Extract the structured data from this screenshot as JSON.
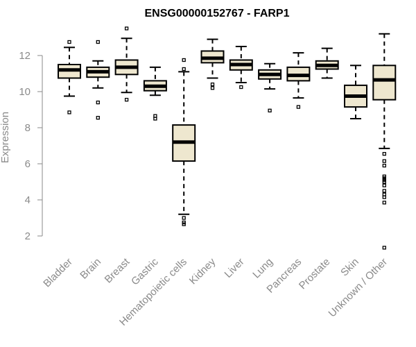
{
  "chart_data": {
    "type": "boxplot",
    "title": "ENSG00000152767 - FARP1",
    "xlabel": "",
    "ylabel": "Expression",
    "ylim": [
      1.0,
      13.7
    ],
    "yticks": [
      2,
      4,
      6,
      8,
      10,
      12
    ],
    "box_color": "#EEE7CF",
    "categories": [
      "Bladder",
      "Brain",
      "Breast",
      "Gastric",
      "Hematopoietic cells",
      "Kidney",
      "Liver",
      "Lung",
      "Pancreas",
      "Prostate",
      "Skin",
      "Unknown / Other"
    ],
    "boxes": [
      {
        "category": "Bladder",
        "whisker_low": 9.75,
        "q1": 10.75,
        "median": 11.2,
        "q3": 11.5,
        "whisker_high": 12.45,
        "outliers": [
          12.75,
          8.85
        ]
      },
      {
        "category": "Brain",
        "whisker_low": 10.2,
        "q1": 10.8,
        "median": 11.1,
        "q3": 11.35,
        "whisker_high": 11.7,
        "outliers": [
          12.75,
          9.4,
          8.55
        ]
      },
      {
        "category": "Breast",
        "whisker_low": 9.95,
        "q1": 10.95,
        "median": 11.35,
        "q3": 11.75,
        "whisker_high": 12.95,
        "outliers": [
          13.5,
          9.55
        ]
      },
      {
        "category": "Gastric",
        "whisker_low": 9.8,
        "q1": 10.05,
        "median": 10.3,
        "q3": 10.6,
        "whisker_high": 11.35,
        "outliers": [
          8.65,
          8.5
        ]
      },
      {
        "category": "Hematopoietic cells",
        "whisker_low": 3.2,
        "q1": 6.15,
        "median": 7.2,
        "q3": 8.15,
        "whisker_high": 11.1,
        "outliers": [
          11.75,
          11.25,
          3.0,
          2.75,
          2.65
        ]
      },
      {
        "category": "Kidney",
        "whisker_low": 10.75,
        "q1": 11.6,
        "median": 11.85,
        "q3": 12.25,
        "whisker_high": 12.9,
        "outliers": [
          10.4,
          10.2
        ]
      },
      {
        "category": "Liver",
        "whisker_low": 10.5,
        "q1": 11.2,
        "median": 11.5,
        "q3": 11.75,
        "whisker_high": 12.5,
        "outliers": [
          10.25
        ]
      },
      {
        "category": "Lung",
        "whisker_low": 10.15,
        "q1": 10.7,
        "median": 10.95,
        "q3": 11.2,
        "whisker_high": 11.55,
        "outliers": [
          8.95
        ]
      },
      {
        "category": "Pancreas",
        "whisker_low": 9.65,
        "q1": 10.6,
        "median": 10.9,
        "q3": 11.35,
        "whisker_high": 12.15,
        "outliers": [
          9.15
        ]
      },
      {
        "category": "Prostate",
        "whisker_low": 10.75,
        "q1": 11.25,
        "median": 11.45,
        "q3": 11.7,
        "whisker_high": 12.4,
        "outliers": []
      },
      {
        "category": "Skin",
        "whisker_low": 8.5,
        "q1": 9.15,
        "median": 9.75,
        "q3": 10.35,
        "whisker_high": 11.45,
        "outliers": []
      },
      {
        "category": "Unknown / Other",
        "whisker_low": 6.85,
        "q1": 9.55,
        "median": 10.65,
        "q3": 11.45,
        "whisker_high": 13.2,
        "outliers": [
          6.55,
          6.15,
          5.9,
          5.3,
          5.2,
          5.1,
          5.0,
          4.8,
          4.5,
          4.3,
          4.15,
          3.85,
          1.35
        ]
      }
    ]
  }
}
